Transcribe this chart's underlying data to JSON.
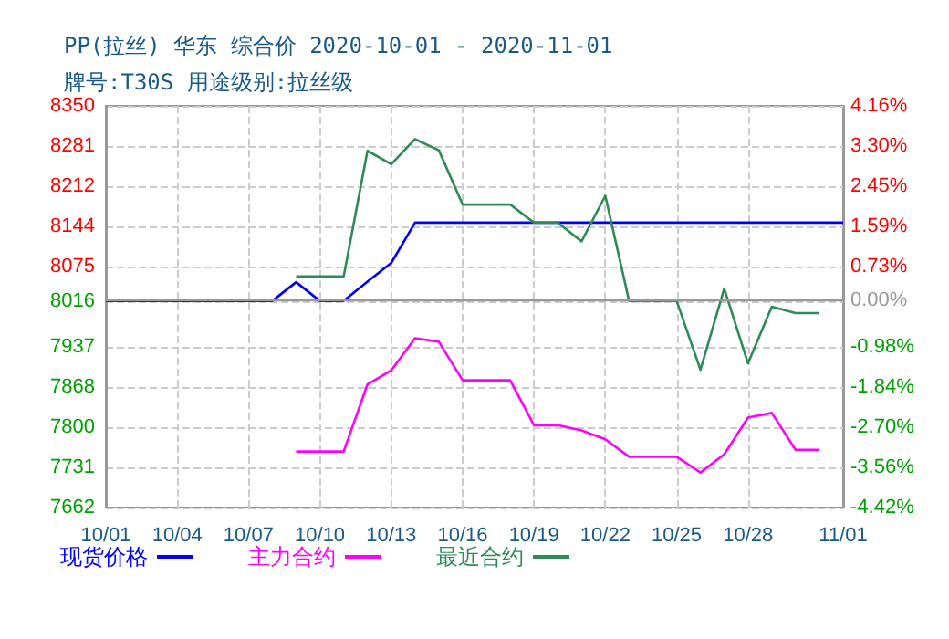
{
  "chart_data": {
    "type": "line",
    "title": "PP(拉丝) 华东 综合价 2020-10-01 - 2020-11-01",
    "subtitle": "牌号:T30S 用途级别:拉丝级",
    "categories": [
      "10/01",
      null,
      null,
      "10/04",
      null,
      null,
      "10/07",
      null,
      null,
      "10/10",
      null,
      null,
      "10/13",
      null,
      null,
      "10/16",
      null,
      null,
      "10/19",
      null,
      null,
      "10/22",
      null,
      null,
      "10/25",
      null,
      null,
      "10/28",
      null,
      null,
      null,
      "11/01"
    ],
    "series": [
      {
        "name": "现货价格",
        "color": "#0000ff",
        "values": [
          8016,
          8016,
          8016,
          8016,
          8016,
          8016,
          8016,
          8016,
          8048,
          8016,
          8016,
          8049,
          8081,
          8150,
          8150,
          8150,
          8150,
          8150,
          8150,
          8150,
          8150,
          8150,
          8150,
          8150,
          8150,
          8150,
          8150,
          8150,
          8150,
          8150,
          8150,
          8150
        ]
      },
      {
        "name": "主力合约",
        "color": "#ff00ff",
        "values": [
          null,
          null,
          null,
          null,
          null,
          null,
          null,
          null,
          7758,
          7758,
          7758,
          7873,
          7897,
          7952,
          7946,
          7880,
          7880,
          7880,
          7803,
          7803,
          7794,
          7779,
          7749,
          7749,
          7749,
          7722,
          7753,
          7816,
          7824,
          7761,
          7761,
          null
        ]
      },
      {
        "name": "最近合约",
        "color": "#2e8b57",
        "values": [
          null,
          null,
          null,
          null,
          null,
          null,
          null,
          null,
          8058,
          8058,
          8058,
          8273,
          8250,
          8293,
          8274,
          8181,
          8181,
          8181,
          8150,
          8150,
          8118,
          8196,
          8016,
          8016,
          8016,
          7898,
          8037,
          7909,
          8006,
          7995,
          7995,
          null
        ]
      }
    ],
    "ylim": [
      7662,
      8350
    ],
    "yticks": [
      8350,
      8281,
      8212,
      8144,
      8075,
      8016,
      7937,
      7868,
      7800,
      7731,
      7662
    ],
    "y2lim": [
      -4.42,
      4.16
    ],
    "y2ticks": [
      {
        "value": 4.16,
        "label": "4.16%"
      },
      {
        "value": 3.3,
        "label": "3.30%"
      },
      {
        "value": 2.45,
        "label": "2.45%"
      },
      {
        "value": 1.59,
        "label": "1.59%"
      },
      {
        "value": 0.73,
        "label": "0.73%"
      },
      {
        "value": 0,
        "label": "0.00%"
      },
      {
        "value": -0.98,
        "label": "-0.98%"
      },
      {
        "value": -1.84,
        "label": "-1.84%"
      },
      {
        "value": -2.7,
        "label": "-2.70%"
      },
      {
        "value": -3.56,
        "label": "-3.56%"
      },
      {
        "value": -4.42,
        "label": "-4.42%"
      }
    ],
    "ref_lines": [
      {
        "axis": "y2",
        "value": 0,
        "color": "#999999"
      }
    ],
    "grid": true,
    "legend": "bottom",
    "marker": "none",
    "line_style": "solid"
  }
}
